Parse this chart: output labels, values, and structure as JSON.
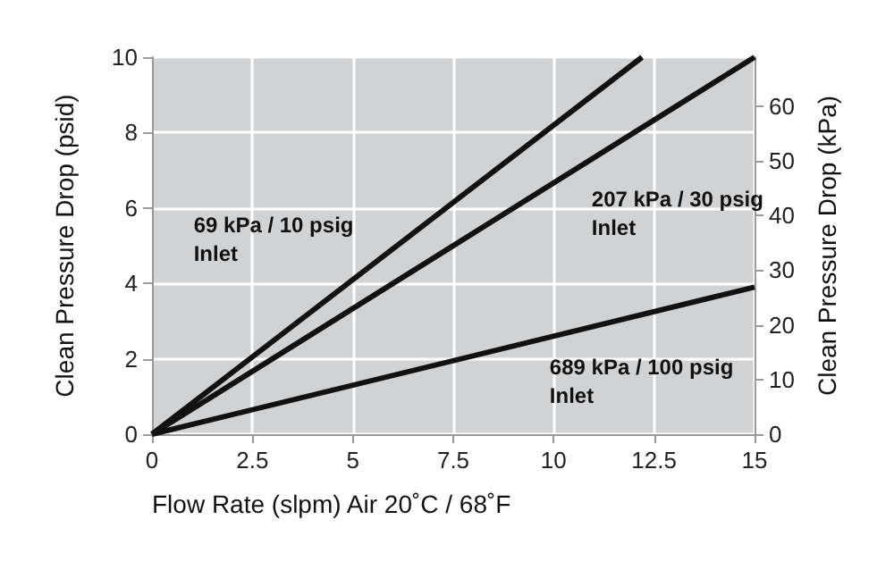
{
  "chart_data": {
    "type": "line",
    "xlabel": "Flow Rate (slpm) Air 20˚C / 68˚F",
    "ylabel": "Clean Pressure Drop (psid)",
    "y2label": "Clean Pressure Drop (kPa)",
    "series": [
      {
        "name": "69 kPa / 10 psig Inlet",
        "color": "#111111",
        "x": [
          0,
          12.2
        ],
        "values": [
          0,
          10
        ]
      },
      {
        "name": "207 kPa / 30 psig Inlet",
        "color": "#111111",
        "x": [
          0,
          15
        ],
        "values": [
          0,
          10
        ]
      },
      {
        "name": "689 kPa / 100 psig Inlet",
        "color": "#111111",
        "x": [
          0,
          15
        ],
        "values": [
          0,
          3.9
        ]
      }
    ],
    "xlim": [
      0,
      15
    ],
    "xticks": [
      0,
      2.5,
      5,
      7.5,
      10,
      12.5,
      15
    ],
    "ylim": [
      0,
      10
    ],
    "yticks": [
      0,
      2,
      4,
      6,
      8,
      10
    ],
    "y2lim": [
      0,
      68.95
    ],
    "y2ticks": [
      0,
      10,
      20,
      30,
      40,
      50,
      60
    ],
    "grid": true,
    "legend": false,
    "marker": "none",
    "line_style": "solid"
  }
}
